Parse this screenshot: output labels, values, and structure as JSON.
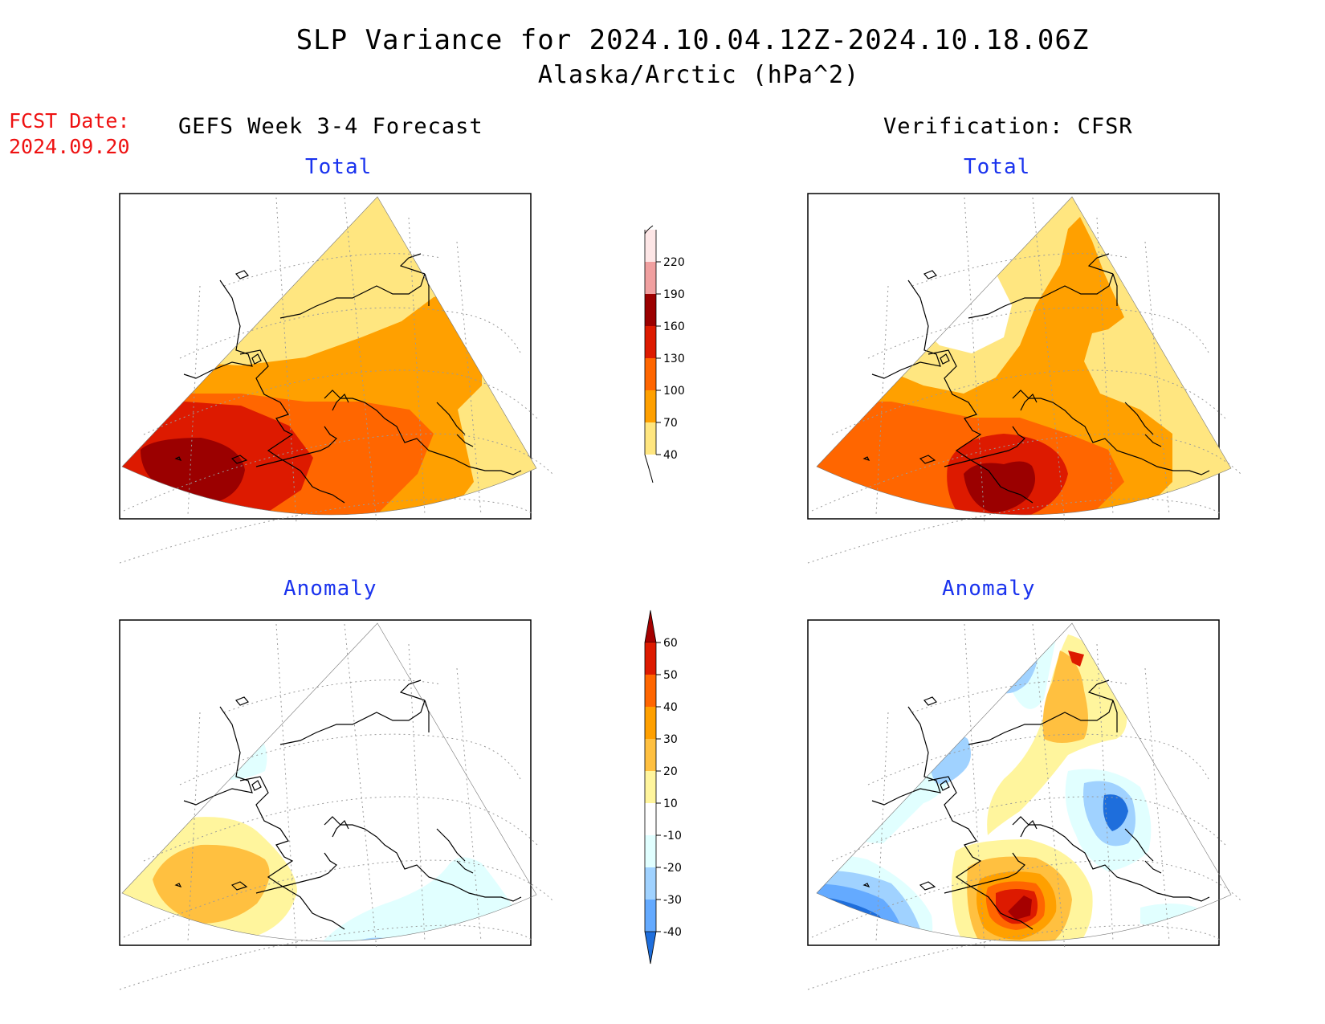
{
  "title": {
    "line1": "SLP Variance for 2024.10.04.12Z-2024.10.18.06Z",
    "line2": "Alaska/Arctic (hPa^2)"
  },
  "forecast_date": {
    "label": "FCST Date:",
    "value": "2024.09.20"
  },
  "columns": {
    "left": "GEFS Week 3-4 Forecast",
    "right": "Verification: CFSR"
  },
  "panels": {
    "top_left": {
      "subtitle": "Total"
    },
    "top_right": {
      "subtitle": "Total"
    },
    "bottom_left": {
      "subtitle": "Anomaly"
    },
    "bottom_right": {
      "subtitle": "Anomaly"
    }
  },
  "colorbars": {
    "total": {
      "labels": [
        "220",
        "190",
        "160",
        "130",
        "100",
        "70",
        "40"
      ],
      "colors": [
        "#fde6e6",
        "#f0a0a0",
        "#9b0000",
        "#dd1a00",
        "#ff6600",
        "#ffa000",
        "#ffe680"
      ]
    },
    "anomaly": {
      "labels": [
        "60",
        "50",
        "40",
        "30",
        "20",
        "10",
        "-10",
        "-20",
        "-30",
        "-40"
      ],
      "colors": [
        "#a50000",
        "#dd1a00",
        "#ff6600",
        "#ffa000",
        "#ffc040",
        "#fff59d",
        "#ffffff",
        "#e1ffff",
        "#a0d2ff",
        "#64aaff",
        "#1e6edc"
      ]
    }
  },
  "field_colors": {
    "white": "#ffffff",
    "yellow": "#ffe680",
    "orange": "#ffa000",
    "dark_orange": "#ff6600",
    "red": "#dd1a00",
    "dark_red": "#9b0000",
    "anom_pale_yellow": "#fff59d",
    "anom_gold": "#ffc040",
    "anom_orange": "#ffa000",
    "anom_dark_orange": "#ff6600",
    "anom_red": "#dd1a00",
    "anom_dark_red": "#a50000",
    "anom_light_cyan": "#e1ffff",
    "anom_light_blue": "#a0d2ff",
    "anom_blue": "#64aaff",
    "anom_dark_blue": "#1e6edc"
  }
}
